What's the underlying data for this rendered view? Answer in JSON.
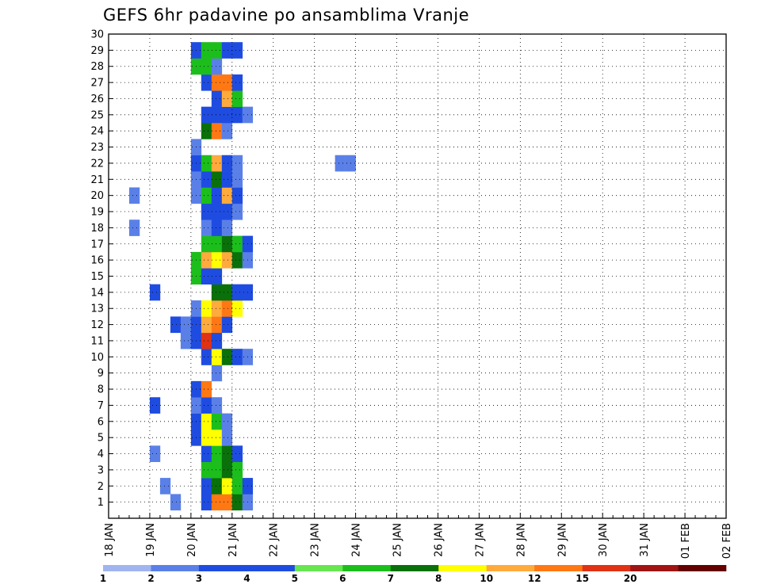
{
  "chart_data": {
    "type": "heatmap",
    "title": "GEFS 6hr padavine po ansamblima Vranje",
    "xlabel": "",
    "ylabel": "",
    "x_ticks": [
      "18 JAN",
      "19 JAN",
      "20 JAN",
      "21 JAN",
      "22 JAN",
      "23 JAN",
      "24 JAN",
      "25 JAN",
      "26 JAN",
      "27 JAN",
      "28 JAN",
      "29 JAN",
      "30 JAN",
      "31 JAN",
      "01 FEB",
      "02 FEB"
    ],
    "x_range": [
      "18 JAN 00Z",
      "02 FEB 00Z"
    ],
    "x_step": "6hr",
    "y_ticks": [
      1,
      2,
      3,
      4,
      5,
      6,
      7,
      8,
      9,
      10,
      11,
      12,
      13,
      14,
      15,
      16,
      17,
      18,
      19,
      20,
      21,
      22,
      23,
      24,
      25,
      26,
      27,
      28,
      29,
      30
    ],
    "y_range": [
      0,
      30
    ],
    "grid": true,
    "legend_placement": "bottom",
    "legend_levels": [
      1,
      2,
      3,
      4,
      5,
      6,
      7,
      8,
      10,
      12,
      15,
      20
    ],
    "legend_colors": [
      "#a0b4f0",
      "#5a80e8",
      "#1f4ce0",
      "#1f4ce0",
      "#66e650",
      "#1cbe1c",
      "#0a700a",
      "#ffff00",
      "#ffaa3c",
      "#ff7814",
      "#e03214",
      "#a01414",
      "#640000"
    ],
    "cells_note": "",
    "cells": [
      [
        "19 JAN 12Z",
        1,
        1
      ],
      [
        "20 JAN 06Z",
        1,
        2
      ],
      [
        "20 JAN 12Z",
        1,
        10
      ],
      [
        "20 JAN 18Z",
        1,
        10
      ],
      [
        "21 JAN 00Z",
        1,
        6
      ],
      [
        "21 JAN 06Z",
        1,
        1
      ],
      [
        "19 JAN 06Z",
        2,
        1
      ],
      [
        "20 JAN 06Z",
        2,
        2
      ],
      [
        "20 JAN 12Z",
        2,
        6
      ],
      [
        "20 JAN 18Z",
        2,
        7
      ],
      [
        "21 JAN 00Z",
        2,
        5
      ],
      [
        "21 JAN 06Z",
        2,
        2
      ],
      [
        "20 JAN 06Z",
        3,
        5
      ],
      [
        "20 JAN 12Z",
        3,
        5
      ],
      [
        "20 JAN 18Z",
        3,
        6
      ],
      [
        "21 JAN 00Z",
        3,
        5
      ],
      [
        "20 JAN 06Z",
        4,
        3
      ],
      [
        "20 JAN 12Z",
        4,
        5
      ],
      [
        "20 JAN 18Z",
        4,
        6
      ],
      [
        "21 JAN 00Z",
        4,
        3
      ],
      [
        "19 JAN 00Z",
        4,
        1
      ],
      [
        "20 JAN 00Z",
        5,
        2
      ],
      [
        "20 JAN 06Z",
        5,
        7
      ],
      [
        "20 JAN 12Z",
        5,
        7
      ],
      [
        "20 JAN 18Z",
        5,
        1
      ],
      [
        "20 JAN 00Z",
        6,
        2
      ],
      [
        "20 JAN 06Z",
        6,
        7
      ],
      [
        "20 JAN 12Z",
        6,
        5
      ],
      [
        "20 JAN 18Z",
        6,
        1
      ],
      [
        "19 JAN 00Z",
        7,
        2
      ],
      [
        "20 JAN 00Z",
        7,
        1
      ],
      [
        "20 JAN 06Z",
        7,
        3
      ],
      [
        "20 JAN 12Z",
        7,
        1
      ],
      [
        "20 JAN 00Z",
        8,
        3
      ],
      [
        "20 JAN 06Z",
        8,
        10
      ],
      [
        "20 JAN 12Z",
        9,
        1
      ],
      [
        "20 JAN 06Z",
        10,
        3
      ],
      [
        "20 JAN 12Z",
        10,
        7
      ],
      [
        "20 JAN 18Z",
        10,
        6
      ],
      [
        "21 JAN 00Z",
        10,
        2
      ],
      [
        "21 JAN 06Z",
        10,
        1
      ],
      [
        "19 JAN 18Z",
        11,
        1
      ],
      [
        "20 JAN 00Z",
        11,
        3
      ],
      [
        "20 JAN 06Z",
        11,
        12
      ],
      [
        "20 JAN 12Z",
        11,
        2
      ],
      [
        "19 JAN 12Z",
        12,
        2
      ],
      [
        "19 JAN 18Z",
        12,
        1
      ],
      [
        "20 JAN 00Z",
        12,
        3
      ],
      [
        "20 JAN 06Z",
        12,
        8
      ],
      [
        "20 JAN 12Z",
        12,
        10
      ],
      [
        "20 JAN 18Z",
        12,
        2
      ],
      [
        "20 JAN 00Z",
        13,
        1
      ],
      [
        "20 JAN 06Z",
        13,
        7
      ],
      [
        "20 JAN 12Z",
        13,
        8
      ],
      [
        "20 JAN 18Z",
        13,
        10
      ],
      [
        "21 JAN 00Z",
        13,
        7
      ],
      [
        "19 JAN 00Z",
        14,
        3
      ],
      [
        "20 JAN 12Z",
        14,
        6
      ],
      [
        "20 JAN 18Z",
        14,
        6
      ],
      [
        "21 JAN 00Z",
        14,
        3
      ],
      [
        "21 JAN 06Z",
        14,
        3
      ],
      [
        "20 JAN 00Z",
        15,
        5
      ],
      [
        "20 JAN 06Z",
        15,
        2
      ],
      [
        "20 JAN 12Z",
        15,
        2
      ],
      [
        "20 JAN 00Z",
        16,
        5
      ],
      [
        "20 JAN 06Z",
        16,
        8
      ],
      [
        "20 JAN 12Z",
        16,
        7
      ],
      [
        "20 JAN 18Z",
        16,
        8
      ],
      [
        "21 JAN 00Z",
        16,
        6
      ],
      [
        "21 JAN 06Z",
        16,
        1
      ],
      [
        "20 JAN 06Z",
        17,
        5
      ],
      [
        "20 JAN 12Z",
        17,
        5
      ],
      [
        "20 JAN 18Z",
        17,
        6
      ],
      [
        "21 JAN 00Z",
        17,
        5
      ],
      [
        "21 JAN 06Z",
        17,
        2
      ],
      [
        "18 JAN 12Z",
        18,
        1
      ],
      [
        "20 JAN 06Z",
        18,
        1
      ],
      [
        "20 JAN 12Z",
        18,
        2
      ],
      [
        "20 JAN 18Z",
        18,
        1
      ],
      [
        "20 JAN 06Z",
        19,
        3
      ],
      [
        "20 JAN 12Z",
        19,
        2
      ],
      [
        "20 JAN 18Z",
        19,
        3
      ],
      [
        "21 JAN 00Z",
        19,
        1
      ],
      [
        "18 JAN 12Z",
        20,
        1
      ],
      [
        "20 JAN 00Z",
        20,
        1
      ],
      [
        "20 JAN 06Z",
        20,
        5
      ],
      [
        "20 JAN 12Z",
        20,
        3
      ],
      [
        "20 JAN 18Z",
        20,
        8
      ],
      [
        "21 JAN 00Z",
        20,
        3
      ],
      [
        "20 JAN 00Z",
        21,
        1
      ],
      [
        "20 JAN 06Z",
        21,
        3
      ],
      [
        "20 JAN 12Z",
        21,
        6
      ],
      [
        "20 JAN 18Z",
        21,
        2
      ],
      [
        "21 JAN 00Z",
        21,
        1
      ],
      [
        "20 JAN 00Z",
        22,
        2
      ],
      [
        "20 JAN 06Z",
        22,
        5
      ],
      [
        "20 JAN 12Z",
        22,
        8
      ],
      [
        "20 JAN 18Z",
        22,
        2
      ],
      [
        "21 JAN 00Z",
        22,
        1
      ],
      [
        "23 JAN 12Z",
        22,
        1
      ],
      [
        "23 JAN 18Z",
        22,
        1
      ],
      [
        "20 JAN 00Z",
        23,
        1
      ],
      [
        "20 JAN 06Z",
        24,
        6
      ],
      [
        "20 JAN 12Z",
        24,
        10
      ],
      [
        "20 JAN 18Z",
        24,
        1
      ],
      [
        "20 JAN 06Z",
        25,
        3
      ],
      [
        "20 JAN 12Z",
        25,
        3
      ],
      [
        "20 JAN 18Z",
        25,
        3
      ],
      [
        "21 JAN 00Z",
        25,
        2
      ],
      [
        "21 JAN 06Z",
        25,
        1
      ],
      [
        "20 JAN 12Z",
        26,
        3
      ],
      [
        "20 JAN 18Z",
        26,
        8
      ],
      [
        "21 JAN 00Z",
        26,
        5
      ],
      [
        "20 JAN 06Z",
        27,
        2
      ],
      [
        "20 JAN 12Z",
        27,
        10
      ],
      [
        "20 JAN 18Z",
        27,
        10
      ],
      [
        "21 JAN 00Z",
        27,
        2
      ],
      [
        "20 JAN 00Z",
        28,
        5
      ],
      [
        "20 JAN 06Z",
        28,
        5
      ],
      [
        "20 JAN 12Z",
        28,
        1
      ],
      [
        "20 JAN 00Z",
        29,
        2
      ],
      [
        "20 JAN 06Z",
        29,
        5
      ],
      [
        "20 JAN 12Z",
        29,
        5
      ],
      [
        "20 JAN 18Z",
        29,
        2
      ],
      [
        "21 JAN 00Z",
        29,
        2
      ]
    ]
  }
}
